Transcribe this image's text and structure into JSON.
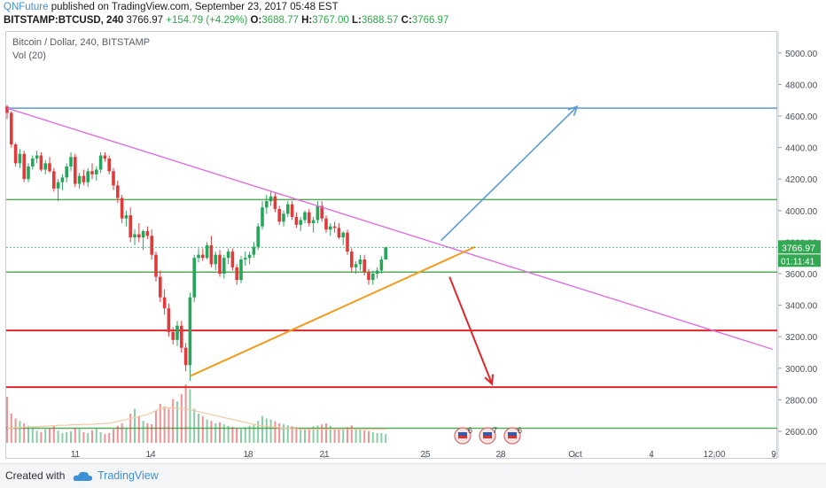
{
  "header": {
    "author": "QNFuture",
    "published": " published on TradingView.com, September 23, 2017 05:48 EST",
    "symbol": "BITSTAMP:BTCUSD, 240",
    "last": "3766.97",
    "change": "+154.79 (+4.29%)",
    "o_label": "O:",
    "o": "3688.77",
    "h_label": "H:",
    "h": "3767.00",
    "l_label": "L:",
    "l": "3688.57",
    "c_label": "C:",
    "c": "3766.97"
  },
  "legend": {
    "pair": "Bitcoin / Dollar, 240, BITSTAMP",
    "volume": "Vol (20)"
  },
  "footer": {
    "created": "Created with",
    "brand": "TradingView"
  },
  "colors": {
    "up": "#26a65b",
    "down": "#e03a3a",
    "volume_ma": "#f1c9a6",
    "blue_line": "#5b9bd5",
    "magenta_line": "#e066e0",
    "orange_line": "#f29b1d",
    "green_line": "#5aa95a",
    "red_line": "#e0262a",
    "price_tag": "#33a852",
    "timer_tag": "#33a852"
  },
  "chart_data": {
    "type": "candlestick",
    "y_ticks": [
      "5000.00",
      "4800.00",
      "4600.00",
      "4400.00",
      "4200.00",
      "4000.00",
      "3800.00",
      "3600.00",
      "3400.00",
      "3200.00",
      "3000.00",
      "2800.00",
      "2600.00"
    ],
    "ylim": [
      2500,
      5100
    ],
    "x_ticks": [
      "11",
      "14",
      "18",
      "21",
      "25",
      "28",
      "Oct",
      "4",
      "12:00",
      "9"
    ],
    "last_price_label": "3766.97",
    "countdown_label": "01:11:41",
    "event_badges": [
      "6",
      "7",
      "6"
    ],
    "horizontal_levels": [
      {
        "price": 4650,
        "color": "blue"
      },
      {
        "price": 4070,
        "color": "green"
      },
      {
        "price": 3610,
        "color": "green"
      },
      {
        "price": 3240,
        "color": "red"
      },
      {
        "price": 2880,
        "color": "red"
      },
      {
        "price": 2620,
        "color": "green"
      }
    ],
    "trendlines": [
      {
        "color": "magenta",
        "from": [
          0,
          4650
        ],
        "to": [
          180,
          3120
        ]
      },
      {
        "color": "orange",
        "from": [
          43,
          2950
        ],
        "to": [
          110,
          3770
        ]
      }
    ],
    "arrows": [
      {
        "color": "blue",
        "from": [
          102,
          3810
        ],
        "to": [
          134,
          4660
        ]
      },
      {
        "color": "red",
        "from": [
          104,
          3580
        ],
        "to": [
          114,
          2900
        ]
      }
    ],
    "candles": [
      [
        4660,
        4670,
        4580,
        4620
      ],
      [
        4620,
        4630,
        4400,
        4420
      ],
      [
        4420,
        4430,
        4280,
        4300
      ],
      [
        4300,
        4390,
        4270,
        4360
      ],
      [
        4360,
        4380,
        4180,
        4200
      ],
      [
        4200,
        4300,
        4180,
        4280
      ],
      [
        4280,
        4350,
        4260,
        4330
      ],
      [
        4330,
        4380,
        4300,
        4350
      ],
      [
        4350,
        4370,
        4250,
        4260
      ],
      [
        4260,
        4320,
        4230,
        4300
      ],
      [
        4300,
        4340,
        4240,
        4250
      ],
      [
        4250,
        4270,
        4120,
        4140
      ],
      [
        4140,
        4200,
        4060,
        4180
      ],
      [
        4180,
        4230,
        4130,
        4210
      ],
      [
        4210,
        4300,
        4180,
        4280
      ],
      [
        4280,
        4370,
        4250,
        4340
      ],
      [
        4340,
        4360,
        4150,
        4170
      ],
      [
        4170,
        4240,
        4140,
        4220
      ],
      [
        4220,
        4260,
        4160,
        4180
      ],
      [
        4180,
        4270,
        4150,
        4250
      ],
      [
        4250,
        4300,
        4200,
        4230
      ],
      [
        4230,
        4280,
        4190,
        4260
      ],
      [
        4260,
        4370,
        4240,
        4350
      ],
      [
        4350,
        4370,
        4310,
        4330
      ],
      [
        4330,
        4350,
        4230,
        4250
      ],
      [
        4250,
        4270,
        4130,
        4160
      ],
      [
        4160,
        4190,
        4050,
        4080
      ],
      [
        4080,
        4100,
        3920,
        3950
      ],
      [
        3950,
        4000,
        3900,
        3970
      ],
      [
        3970,
        4020,
        3800,
        3830
      ],
      [
        3830,
        3880,
        3780,
        3850
      ],
      [
        3850,
        3920,
        3800,
        3830
      ],
      [
        3830,
        3880,
        3750,
        3870
      ],
      [
        3870,
        3900,
        3820,
        3840
      ],
      [
        3840,
        3880,
        3690,
        3720
      ],
      [
        3720,
        3740,
        3550,
        3580
      ],
      [
        3580,
        3620,
        3420,
        3450
      ],
      [
        3450,
        3500,
        3340,
        3380
      ],
      [
        3380,
        3410,
        3200,
        3230
      ],
      [
        3230,
        3260,
        3150,
        3180
      ],
      [
        3180,
        3300,
        3140,
        3270
      ],
      [
        3270,
        3300,
        3100,
        3130
      ],
      [
        3130,
        3160,
        2980,
        3020
      ],
      [
        3020,
        3480,
        2920,
        3450
      ],
      [
        3450,
        3720,
        3420,
        3700
      ],
      [
        3700,
        3760,
        3670,
        3720
      ],
      [
        3720,
        3760,
        3680,
        3700
      ],
      [
        3700,
        3800,
        3690,
        3780
      ],
      [
        3780,
        3840,
        3640,
        3660
      ],
      [
        3660,
        3740,
        3620,
        3720
      ],
      [
        3720,
        3750,
        3580,
        3600
      ],
      [
        3600,
        3720,
        3570,
        3700
      ],
      [
        3700,
        3760,
        3660,
        3740
      ],
      [
        3740,
        3760,
        3620,
        3640
      ],
      [
        3640,
        3660,
        3530,
        3560
      ],
      [
        3560,
        3710,
        3540,
        3690
      ],
      [
        3690,
        3740,
        3650,
        3700
      ],
      [
        3700,
        3740,
        3660,
        3720
      ],
      [
        3720,
        3800,
        3700,
        3770
      ],
      [
        3770,
        3920,
        3750,
        3900
      ],
      [
        3900,
        4060,
        3880,
        4020
      ],
      [
        4020,
        4100,
        3980,
        4060
      ],
      [
        4060,
        4120,
        4030,
        4090
      ],
      [
        4090,
        4110,
        3990,
        4010
      ],
      [
        4010,
        4030,
        3910,
        3930
      ],
      [
        3930,
        4000,
        3900,
        3980
      ],
      [
        3980,
        4060,
        3960,
        4040
      ],
      [
        4040,
        4060,
        3940,
        3960
      ],
      [
        3960,
        3990,
        3890,
        3910
      ],
      [
        3910,
        3960,
        3870,
        3940
      ],
      [
        3940,
        4000,
        3920,
        3990
      ],
      [
        3990,
        4010,
        3900,
        3920
      ],
      [
        3920,
        3960,
        3860,
        3940
      ],
      [
        3940,
        4060,
        3920,
        4030
      ],
      [
        4030,
        4060,
        3930,
        3950
      ],
      [
        3950,
        3970,
        3860,
        3880
      ],
      [
        3880,
        3920,
        3840,
        3900
      ],
      [
        3900,
        3930,
        3860,
        3890
      ],
      [
        3890,
        3920,
        3820,
        3830
      ],
      [
        3830,
        3870,
        3780,
        3860
      ],
      [
        3860,
        3880,
        3720,
        3740
      ],
      [
        3740,
        3760,
        3610,
        3640
      ],
      [
        3640,
        3680,
        3600,
        3660
      ],
      [
        3660,
        3720,
        3620,
        3690
      ],
      [
        3690,
        3720,
        3590,
        3610
      ],
      [
        3610,
        3630,
        3530,
        3560
      ],
      [
        3560,
        3620,
        3530,
        3600
      ],
      [
        3600,
        3640,
        3570,
        3620
      ],
      [
        3620,
        3710,
        3600,
        3690
      ],
      [
        3690,
        3770,
        3690,
        3767
      ]
    ],
    "volumes": [
      95,
      60,
      50,
      45,
      40,
      35,
      30,
      25,
      22,
      28,
      30,
      35,
      25,
      20,
      22,
      24,
      30,
      28,
      22,
      20,
      26,
      30,
      22,
      18,
      20,
      28,
      35,
      40,
      30,
      60,
      70,
      55,
      45,
      40,
      38,
      65,
      80,
      75,
      70,
      90,
      85,
      100,
      120,
      110,
      70,
      60,
      55,
      48,
      45,
      40,
      42,
      38,
      35,
      33,
      30,
      28,
      32,
      35,
      38,
      45,
      55,
      50,
      48,
      44,
      40,
      38,
      36,
      34,
      32,
      30,
      28,
      30,
      34,
      36,
      38,
      40,
      35,
      30,
      28,
      30,
      32,
      36,
      30,
      28,
      26,
      24,
      22,
      20,
      20,
      18
    ],
    "volume_ma": [
      30,
      30,
      31,
      31,
      32,
      32,
      33,
      33,
      34,
      34,
      35,
      35,
      36,
      36,
      36,
      37,
      37,
      37,
      38,
      38,
      38,
      39,
      39,
      40,
      40,
      42,
      44,
      46,
      48,
      50,
      52,
      54,
      56,
      58,
      62,
      66,
      70,
      72,
      72,
      72,
      71,
      70,
      69,
      68,
      66,
      64,
      62,
      60,
      58,
      56,
      54,
      52,
      50,
      48,
      46,
      44,
      42,
      40,
      38,
      36,
      35,
      34,
      33,
      32,
      31,
      30,
      30,
      29,
      29,
      28,
      28,
      28,
      28,
      28,
      28,
      28,
      28,
      28,
      28,
      28,
      28,
      28,
      28,
      28,
      28,
      28,
      28,
      28,
      28,
      28
    ]
  }
}
